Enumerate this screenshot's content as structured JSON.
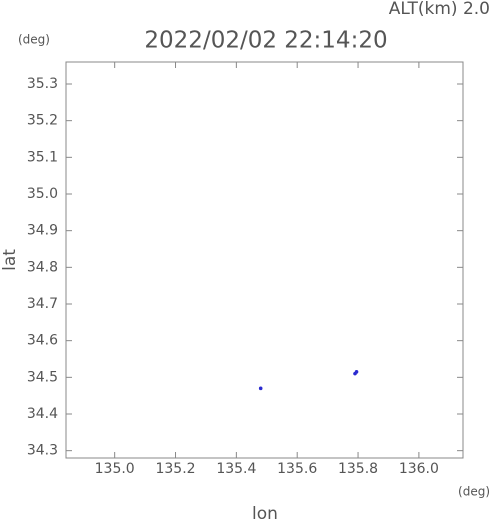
{
  "chart_data": {
    "type": "scatter",
    "title": "2022/02/02 22:14:20",
    "annotation": "ALT(km) 2.0",
    "y_unit": "(deg)",
    "x_unit": "(deg)",
    "xlabel": "lon",
    "ylabel": "lat",
    "series": [
      {
        "color": "#2b2bd0",
        "x": [
          135.48,
          135.79,
          135.795
        ],
        "y": [
          34.47,
          34.51,
          34.515
        ]
      }
    ],
    "xlim": [
      134.84,
      136.145
    ],
    "ylim": [
      34.28,
      35.36
    ],
    "xticks": [
      {
        "value": 135.0,
        "label": "135.0"
      },
      135.2,
      135.4,
      135.6,
      135.8,
      {
        "value": 136.0,
        "label": "136.0"
      }
    ],
    "yticks": [
      34.3,
      34.4,
      34.5,
      34.6,
      34.7,
      34.8,
      34.9,
      {
        "value": 35.0,
        "label": "35.0"
      },
      35.1,
      35.2,
      35.3
    ]
  }
}
